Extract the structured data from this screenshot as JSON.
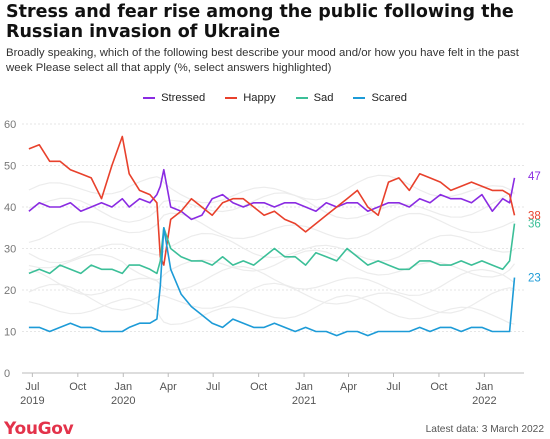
{
  "title": "Stress and fear rise among the public following the Russian invasion of Ukraine",
  "subtitle": "Broadly speaking, which of the following best describe your mood and/or how you have felt in the past week Please select all that apply (%, select answers highlighted)",
  "brand": {
    "logo_text": "YouGov",
    "color": "#e3324a"
  },
  "footer_note": "Latest data: 3 March 2022",
  "chart_data": {
    "type": "line",
    "title": "Stress and fear rise among the public following the Russian invasion of Ukraine",
    "xlabel": "",
    "ylabel": "",
    "ylim": [
      0,
      60
    ],
    "yticks": [
      0,
      10,
      20,
      30,
      40,
      50,
      60
    ],
    "grid": true,
    "legend_position": "top-center",
    "x_dates": [
      "2019-06-24",
      "2019-07-15",
      "2019-08-05",
      "2019-08-26",
      "2019-09-16",
      "2019-10-07",
      "2019-10-28",
      "2019-11-18",
      "2019-12-09",
      "2019-12-30",
      "2020-01-13",
      "2020-02-03",
      "2020-02-24",
      "2020-03-09",
      "2020-03-16",
      "2020-03-23",
      "2020-04-06",
      "2020-04-27",
      "2020-05-18",
      "2020-06-08",
      "2020-06-29",
      "2020-07-20",
      "2020-08-10",
      "2020-08-31",
      "2020-09-21",
      "2020-10-12",
      "2020-11-02",
      "2020-11-23",
      "2020-12-14",
      "2021-01-04",
      "2021-01-25",
      "2021-02-15",
      "2021-03-08",
      "2021-03-29",
      "2021-04-19",
      "2021-05-10",
      "2021-05-31",
      "2021-06-21",
      "2021-07-12",
      "2021-08-02",
      "2021-08-23",
      "2021-09-13",
      "2021-10-04",
      "2021-10-25",
      "2021-11-15",
      "2021-12-06",
      "2021-12-27",
      "2022-01-17",
      "2022-02-07",
      "2022-02-21",
      "2022-03-03"
    ],
    "x_tick_labels": [
      {
        "date": "2019-07-01",
        "label": "Jul",
        "year": "2019"
      },
      {
        "date": "2019-10-01",
        "label": "Oct",
        "year": ""
      },
      {
        "date": "2020-01-01",
        "label": "Jan",
        "year": "2020"
      },
      {
        "date": "2020-04-01",
        "label": "Apr",
        "year": ""
      },
      {
        "date": "2020-07-01",
        "label": "Jul",
        "year": ""
      },
      {
        "date": "2020-10-01",
        "label": "Oct",
        "year": ""
      },
      {
        "date": "2021-01-01",
        "label": "Jan",
        "year": "2021"
      },
      {
        "date": "2021-04-01",
        "label": "Apr",
        "year": ""
      },
      {
        "date": "2021-07-01",
        "label": "Jul",
        "year": ""
      },
      {
        "date": "2021-10-01",
        "label": "Oct",
        "year": ""
      },
      {
        "date": "2022-01-01",
        "label": "Jan",
        "year": "2022"
      }
    ],
    "series": [
      {
        "name": "Stressed",
        "color": "#8a2be2",
        "end_label": "47",
        "values": [
          39,
          41,
          40,
          40,
          41,
          39,
          40,
          41,
          40,
          42,
          40,
          42,
          41,
          43,
          45,
          49,
          40,
          39,
          37,
          38,
          42,
          43,
          41,
          40,
          41,
          41,
          40,
          41,
          41,
          40,
          39,
          41,
          40,
          41,
          41,
          39,
          40,
          41,
          41,
          40,
          42,
          41,
          43,
          42,
          42,
          41,
          43,
          39,
          42,
          41,
          47
        ]
      },
      {
        "name": "Happy",
        "color": "#e8412c",
        "end_label": "38",
        "values": [
          54,
          55,
          51,
          51,
          49,
          48,
          47,
          42,
          50,
          57,
          48,
          44,
          43,
          41,
          28,
          26,
          37,
          39,
          42,
          40,
          38,
          41,
          42,
          42,
          40,
          38,
          39,
          37,
          36,
          34,
          36,
          38,
          40,
          42,
          44,
          40,
          38,
          46,
          47,
          44,
          48,
          47,
          46,
          44,
          45,
          46,
          45,
          44,
          44,
          43,
          38
        ]
      },
      {
        "name": "Sad",
        "color": "#3cbf98",
        "end_label": "36",
        "values": [
          24,
          25,
          24,
          26,
          25,
          24,
          26,
          25,
          25,
          24,
          26,
          26,
          25,
          24,
          27,
          35,
          30,
          28,
          27,
          27,
          26,
          28,
          26,
          27,
          26,
          28,
          30,
          28,
          28,
          26,
          29,
          28,
          27,
          30,
          28,
          26,
          27,
          26,
          25,
          25,
          27,
          27,
          26,
          26,
          27,
          26,
          27,
          26,
          25,
          27,
          36
        ]
      },
      {
        "name": "Scared",
        "color": "#1d9bd7",
        "end_label": "23",
        "values": [
          11,
          11,
          10,
          11,
          12,
          11,
          11,
          10,
          10,
          10,
          11,
          12,
          12,
          13,
          21,
          35,
          25,
          19,
          16,
          14,
          12,
          11,
          13,
          12,
          11,
          11,
          12,
          11,
          10,
          11,
          10,
          10,
          9,
          10,
          10,
          9,
          10,
          10,
          10,
          10,
          11,
          10,
          11,
          11,
          10,
          11,
          11,
          10,
          10,
          10,
          23
        ]
      }
    ],
    "background_lines_note": "other moods shown as faint grey lines"
  }
}
